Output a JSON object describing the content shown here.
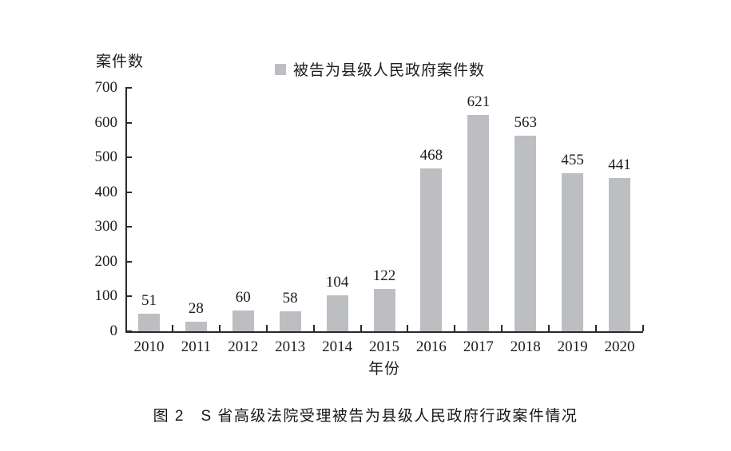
{
  "chart_data": {
    "type": "bar",
    "categories": [
      "2010",
      "2011",
      "2012",
      "2013",
      "2014",
      "2015",
      "2016",
      "2017",
      "2018",
      "2019",
      "2020"
    ],
    "values": [
      51,
      28,
      60,
      58,
      104,
      122,
      468,
      621,
      563,
      455,
      441
    ],
    "title": "图 2　S 省高级法院受理被告为县级人民政府行政案件情况",
    "xlabel": "年份",
    "ylabel": "案件数",
    "ylim": [
      0,
      700
    ],
    "ytick_step": 100,
    "yticks": [
      0,
      100,
      200,
      300,
      400,
      500,
      600,
      700
    ],
    "legend": [
      "被告为县级人民政府案件数"
    ],
    "legend_position": "top",
    "grid": false,
    "data_labels": true,
    "bar_color": "#bcbec2",
    "axis_color": "#2a2a2a",
    "text_color": "#1c1c1c"
  }
}
